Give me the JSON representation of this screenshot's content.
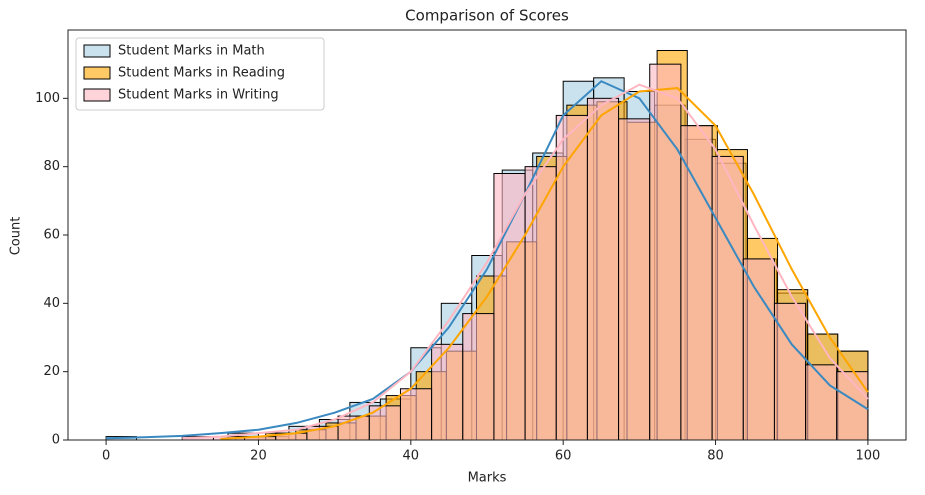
{
  "chart_data": {
    "type": "histogram",
    "title": "Comparison of Scores",
    "xlabel": "Marks",
    "ylabel": "Count",
    "xlim": [
      -5,
      105
    ],
    "ylim": [
      0,
      120
    ],
    "xticks": [
      0,
      20,
      40,
      60,
      80,
      100
    ],
    "yticks": [
      0,
      20,
      40,
      60,
      80,
      100
    ],
    "legend": "upper left",
    "grid": false,
    "series": [
      {
        "name": "Student Marks in Math",
        "color": "#a6cee3",
        "line_color": "#3a89c0",
        "bins": [
          0,
          4,
          8,
          12,
          16,
          20,
          24,
          28,
          32,
          36,
          40,
          44,
          48,
          52,
          56,
          60,
          64,
          68,
          72,
          76,
          80,
          84,
          88,
          92,
          96,
          100
        ],
        "values": [
          1,
          0,
          0,
          0,
          2,
          1,
          4,
          6,
          11,
          12,
          27,
          40,
          54,
          79,
          84,
          105,
          106,
          102,
          98,
          88,
          81,
          53,
          43,
          31,
          26
        ],
        "kde": {
          "x": [
            0,
            5,
            10,
            15,
            20,
            25,
            30,
            35,
            40,
            45,
            50,
            55,
            60,
            65,
            70,
            75,
            80,
            85,
            90,
            95,
            100
          ],
          "values": [
            0.5,
            0.8,
            1.2,
            2,
            3,
            5,
            8,
            12,
            20,
            33,
            50,
            72,
            95,
            105,
            100,
            85,
            65,
            45,
            28,
            16,
            9
          ]
        }
      },
      {
        "name": "Student Marks in Reading",
        "color": "#ffa500",
        "line_color": "#ffa500",
        "bins": [
          17,
          20.95,
          24.9,
          28.86,
          32.81,
          36.76,
          40.71,
          44.67,
          48.62,
          52.57,
          56.52,
          60.48,
          64.43,
          68.38,
          72.33,
          76.29,
          80.24,
          84.19,
          88.14,
          92.1,
          96.05,
          100
        ],
        "values": [
          1,
          2,
          3,
          5,
          7,
          13,
          20,
          26,
          48,
          58,
          83,
          98,
          99,
          93,
          114,
          92,
          85,
          59,
          44,
          31,
          26
        ],
        "kde": {
          "x": [
            15,
            20,
            25,
            30,
            35,
            40,
            45,
            50,
            55,
            60,
            65,
            70,
            75,
            80,
            85,
            90,
            95,
            100
          ],
          "values": [
            0.3,
            1,
            2,
            4,
            8,
            15,
            27,
            42,
            60,
            80,
            95,
            102,
            103,
            92,
            72,
            50,
            30,
            14
          ]
        }
      },
      {
        "name": "Student Marks in Writing",
        "color": "#ffb6c1",
        "line_color": "#ffb6c1",
        "bins": [
          10,
          14.09,
          18.18,
          22.27,
          26.36,
          30.45,
          34.55,
          38.64,
          42.73,
          46.82,
          50.91,
          55,
          59.09,
          63.18,
          67.27,
          71.36,
          75.45,
          79.55,
          83.64,
          87.73,
          91.82,
          95.91,
          100
        ],
        "values": [
          1,
          1,
          1,
          2,
          4,
          7,
          10,
          15,
          28,
          37,
          78,
          80,
          95,
          100,
          94,
          110,
          92,
          83,
          53,
          40,
          22,
          20
        ],
        "kde": {
          "x": [
            10,
            15,
            20,
            25,
            30,
            35,
            40,
            45,
            50,
            55,
            60,
            65,
            70,
            75,
            80,
            85,
            90,
            95,
            100
          ],
          "values": [
            0.5,
            1,
            2,
            3,
            6,
            11,
            20,
            35,
            52,
            72,
            88,
            98,
            104,
            100,
            85,
            63,
            42,
            24,
            12
          ]
        }
      }
    ]
  }
}
